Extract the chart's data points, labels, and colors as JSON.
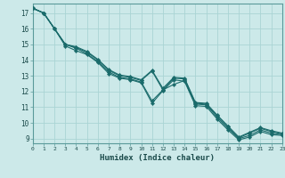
{
  "xlabel": "Humidex (Indice chaleur)",
  "xlim": [
    0,
    23
  ],
  "ylim": [
    8.7,
    17.6
  ],
  "xticks": [
    0,
    1,
    2,
    3,
    4,
    5,
    6,
    7,
    8,
    9,
    10,
    11,
    12,
    13,
    14,
    15,
    16,
    17,
    18,
    19,
    20,
    21,
    22,
    23
  ],
  "yticks": [
    9,
    10,
    11,
    12,
    13,
    14,
    15,
    16,
    17
  ],
  "background_color": "#cce9e9",
  "grid_color": "#aad4d4",
  "line_color": "#1a6b6b",
  "lines": [
    {
      "x": [
        0,
        1,
        2,
        3,
        4,
        5,
        6,
        7,
        8,
        9,
        10,
        11,
        12,
        13,
        14,
        15,
        16,
        17,
        18,
        19,
        20,
        21,
        22,
        23
      ],
      "y": [
        17.3,
        17.0,
        16.0,
        14.9,
        14.6,
        14.35,
        13.85,
        13.15,
        12.85,
        12.75,
        12.55,
        11.25,
        12.05,
        12.75,
        12.65,
        11.1,
        11.05,
        10.25,
        9.55,
        8.92,
        9.1,
        9.45,
        9.25,
        9.2
      ]
    },
    {
      "x": [
        0,
        1,
        2,
        3,
        4,
        5,
        6,
        7,
        8,
        9,
        10,
        11,
        12,
        13,
        14,
        15,
        16,
        17,
        18,
        19,
        20,
        21,
        22,
        23
      ],
      "y": [
        17.3,
        17.0,
        16.0,
        15.0,
        14.75,
        14.4,
        13.9,
        13.25,
        12.9,
        12.8,
        12.6,
        11.4,
        12.1,
        12.45,
        12.7,
        11.2,
        11.15,
        10.35,
        9.65,
        9.0,
        9.2,
        9.55,
        9.35,
        9.25
      ]
    },
    {
      "x": [
        0,
        1,
        2,
        3,
        4,
        5,
        6,
        7,
        8,
        9,
        10,
        11,
        12,
        13,
        14,
        15,
        16,
        17,
        18,
        19,
        20,
        21,
        22,
        23
      ],
      "y": [
        17.3,
        17.0,
        16.0,
        15.0,
        14.8,
        14.5,
        14.0,
        13.35,
        13.0,
        12.9,
        12.7,
        13.3,
        12.1,
        12.85,
        12.8,
        11.25,
        11.2,
        10.45,
        9.75,
        9.05,
        9.35,
        9.65,
        9.45,
        9.3
      ]
    },
    {
      "x": [
        0,
        1,
        2,
        3,
        4,
        5,
        6,
        7,
        8,
        9,
        10,
        11,
        12,
        13,
        14,
        15,
        16,
        17,
        18,
        19,
        20,
        21,
        22,
        23
      ],
      "y": [
        17.3,
        17.0,
        16.0,
        15.0,
        14.85,
        14.55,
        14.05,
        13.4,
        13.05,
        12.95,
        12.75,
        13.35,
        12.2,
        12.9,
        12.85,
        11.3,
        11.25,
        10.5,
        9.8,
        9.1,
        9.4,
        9.7,
        9.5,
        9.35
      ]
    }
  ],
  "marker": "D",
  "markersize": 2.2,
  "linewidth": 0.8
}
